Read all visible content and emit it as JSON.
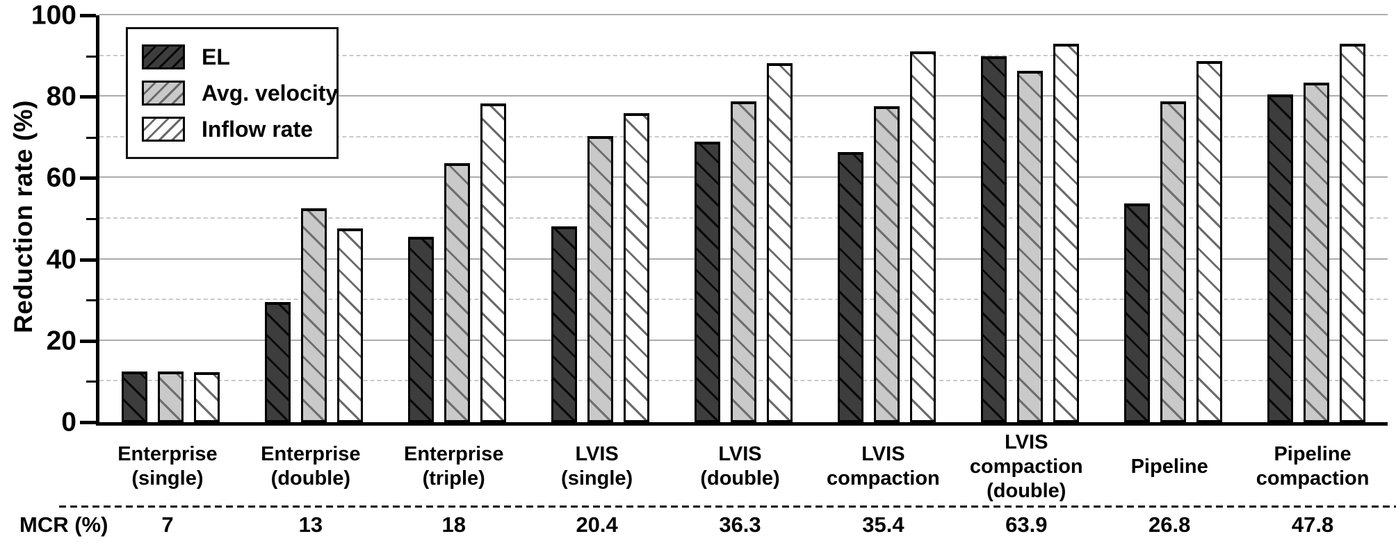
{
  "chart_data": {
    "type": "bar",
    "title": "",
    "xlabel": "",
    "ylabel": "Reduction rate (%)",
    "ylim": [
      0,
      100
    ],
    "y_major_ticks": [
      0,
      20,
      40,
      60,
      80,
      100
    ],
    "y_minor_ticks": [
      10,
      30,
      50,
      70,
      90
    ],
    "grid": "horizontal; solid gray at majors, dashed light-gray at minors",
    "legend_position": "top-left inside plot",
    "hatch_note": "bars hatched with / diagonals, legend swatches with \\ diagonals",
    "categories": [
      {
        "label": "Enterprise (single)",
        "lines": [
          "Enterprise",
          "(single)"
        ]
      },
      {
        "label": "Enterprise (double)",
        "lines": [
          "Enterprise",
          "(double)"
        ]
      },
      {
        "label": "Enterprise (triple)",
        "lines": [
          "Enterprise",
          "(triple)"
        ]
      },
      {
        "label": "LVIS (single)",
        "lines": [
          "LVIS",
          "(single)"
        ]
      },
      {
        "label": "LVIS (double)",
        "lines": [
          "LVIS",
          "(double)"
        ]
      },
      {
        "label": "LVIS compaction",
        "lines": [
          "LVIS",
          "compaction"
        ]
      },
      {
        "label": "LVIS compaction (double)",
        "lines": [
          "LVIS",
          "compaction",
          "(double)"
        ]
      },
      {
        "label": "Pipeline",
        "lines": [
          "Pipeline"
        ]
      },
      {
        "label": "Pipeline compaction",
        "lines": [
          "Pipeline",
          "compaction"
        ]
      }
    ],
    "series": [
      {
        "name": "EL",
        "fill": "#3d3d3d",
        "values": [
          12.5,
          29.6,
          45.5,
          48.1,
          69.0,
          66.4,
          90.0,
          53.7,
          80.5
        ]
      },
      {
        "name": "Avg. velocity",
        "fill": "#c9c9c9",
        "values": [
          12.4,
          52.5,
          63.6,
          70.3,
          78.9,
          77.6,
          86.4,
          78.9,
          83.5
        ]
      },
      {
        "name": "Inflow rate",
        "fill": "#ffffff",
        "values": [
          12.3,
          47.6,
          78.4,
          75.9,
          88.3,
          91.2,
          93.0,
          88.8,
          93.0
        ]
      }
    ],
    "mcr_row_label": "MCR (%)",
    "mcr_values": [
      "7",
      "13",
      "18",
      "20.4",
      "36.3",
      "35.4",
      "63.9",
      "26.8",
      "47.8"
    ]
  }
}
